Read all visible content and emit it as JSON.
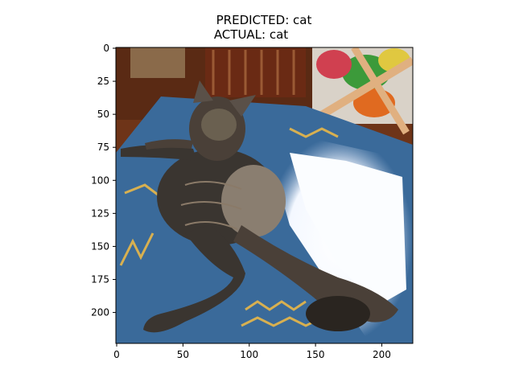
{
  "chart_data": {
    "type": "image",
    "title_lines": [
      "PREDICTED: cat",
      "ACTUAL: cat"
    ],
    "image_subject": "tabby cat lying on blue rug",
    "xlim": [
      0,
      224
    ],
    "ylim": [
      224,
      0
    ],
    "x_ticks": [
      0,
      50,
      100,
      150,
      200
    ],
    "y_ticks": [
      0,
      25,
      50,
      75,
      100,
      125,
      150,
      175,
      200
    ]
  },
  "colors": {
    "rug": "#3a6a9a",
    "floor": "#7a3a1c",
    "cat_dark": "#3a3530",
    "sunlight": "#fafcff"
  }
}
